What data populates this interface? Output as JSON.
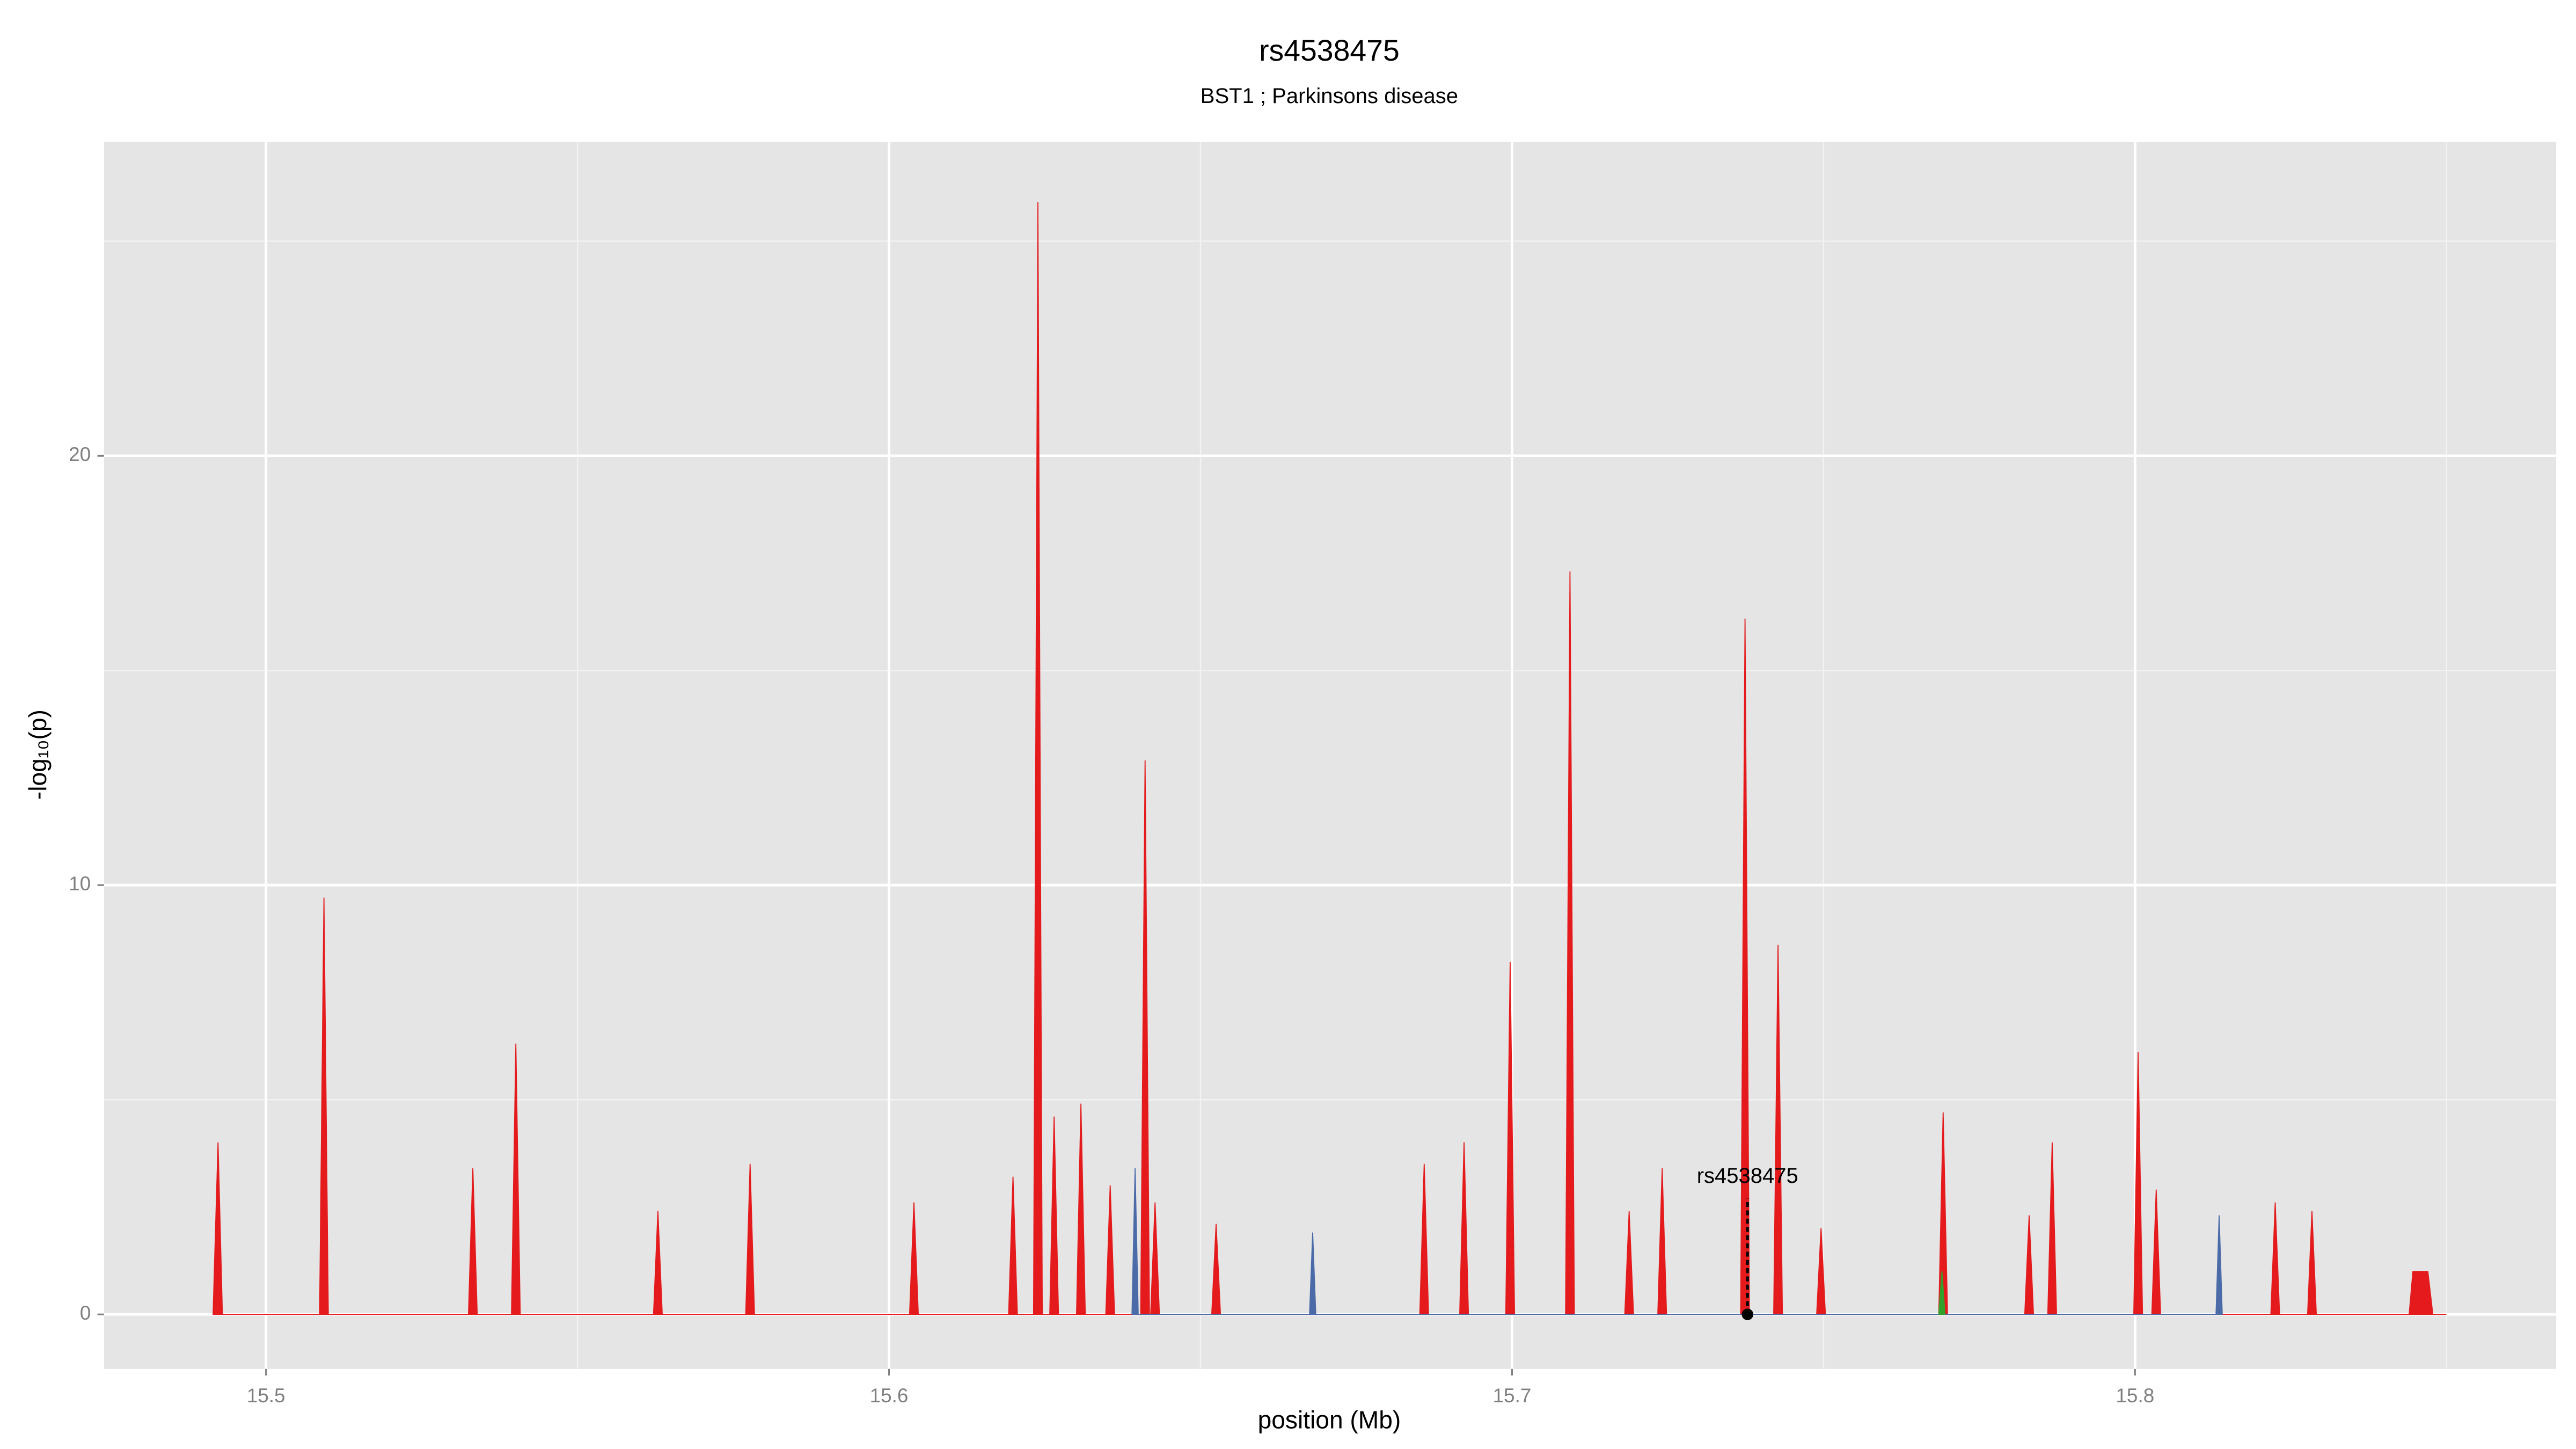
{
  "chart_data": {
    "type": "area",
    "title": "rs4538475",
    "subtitle": "BST1 ; Parkinsons disease",
    "xlabel": "position (Mb)",
    "ylabel": "-log₁₀(p)",
    "xlim": [
      15.474,
      15.8676
    ],
    "ylim": [
      -1.27,
      27.31
    ],
    "xticks": [
      15.5,
      15.6,
      15.7,
      15.8
    ],
    "yticks": [
      0,
      10,
      20
    ],
    "xminor": [
      15.55,
      15.65,
      15.75,
      15.85
    ],
    "yminor": [
      5,
      15,
      25
    ],
    "grid": true,
    "background": "#e5e5e5",
    "series": [
      {
        "color": "#e41a1c",
        "x": [
          15.4915,
          15.4923,
          15.493,
          15.5086,
          15.5093,
          15.51,
          15.5325,
          15.5332,
          15.5339,
          15.5394,
          15.5401,
          15.5408,
          15.5622,
          15.5629,
          15.5636,
          15.577,
          15.5777,
          15.5784,
          15.6033,
          15.604,
          15.6047,
          15.6192,
          15.6199,
          15.6206,
          15.6232,
          15.6239,
          15.6246,
          15.6258,
          15.6265,
          15.6272,
          15.6301,
          15.6308,
          15.6315,
          15.6348,
          15.6355,
          15.6362,
          15.6404,
          15.6411,
          15.6418,
          15.642,
          15.6427,
          15.6434,
          15.6518,
          15.6525,
          15.6532,
          15.6852,
          15.6859,
          15.6866,
          15.6916,
          15.6923,
          15.693,
          15.699,
          15.6997,
          15.7004,
          15.7086,
          15.7093,
          15.71,
          15.7181,
          15.7188,
          15.7195,
          15.7234,
          15.7241,
          15.7248,
          15.7367,
          15.7374,
          15.7381,
          15.742,
          15.7427,
          15.7434,
          15.7489,
          15.7496,
          15.7503,
          15.7685,
          15.7692,
          15.7699,
          15.7823,
          15.783,
          15.7837,
          15.786,
          15.7867,
          15.7874,
          15.7998,
          15.8005,
          15.8012,
          15.8027,
          15.8034,
          15.8041,
          15.8218,
          15.8225,
          15.8232,
          15.8277,
          15.8284,
          15.8291,
          15.844,
          15.8446,
          15.847,
          15.8478,
          15.8499
        ],
        "values": [
          0,
          4.0,
          0,
          0,
          9.7,
          0,
          0,
          3.4,
          0,
          0,
          6.3,
          0,
          0,
          2.4,
          0,
          0,
          3.5,
          0,
          0,
          2.6,
          0,
          0,
          3.2,
          0,
          0,
          25.9,
          0,
          0,
          4.6,
          0,
          0,
          4.9,
          0,
          0,
          3.0,
          0,
          0,
          12.9,
          0,
          0,
          2.6,
          0,
          0,
          2.1,
          0,
          0,
          3.5,
          0,
          0,
          4.0,
          0,
          0,
          8.2,
          0,
          0,
          17.3,
          0,
          0,
          2.4,
          0,
          0,
          3.4,
          0,
          0,
          16.2,
          0,
          0,
          8.6,
          0,
          0,
          2.0,
          0,
          0,
          4.7,
          0,
          0,
          2.3,
          0,
          0,
          4.0,
          0,
          0,
          6.1,
          0,
          0,
          2.9,
          0,
          0,
          2.6,
          0,
          0,
          2.4,
          0,
          0,
          1.0,
          1.0,
          0,
          0
        ]
      },
      {
        "color": "#4a6aa8",
        "x": [
          15.639,
          15.6395,
          15.64,
          15.6675,
          15.668,
          15.6685,
          15.813,
          15.8135,
          15.814
        ],
        "values": [
          0,
          3.4,
          0,
          0,
          1.9,
          0,
          0,
          2.3,
          0
        ]
      },
      {
        "color": "#33a02c",
        "x": [
          15.7685,
          15.769,
          15.7695
        ],
        "values": [
          0,
          1.0,
          0
        ]
      }
    ],
    "annotation": {
      "text": "rs4538475",
      "x": 15.7378,
      "y": 3.2
    },
    "highlight": {
      "x": 15.7378,
      "y": 0,
      "y_top": 2.7
    }
  }
}
